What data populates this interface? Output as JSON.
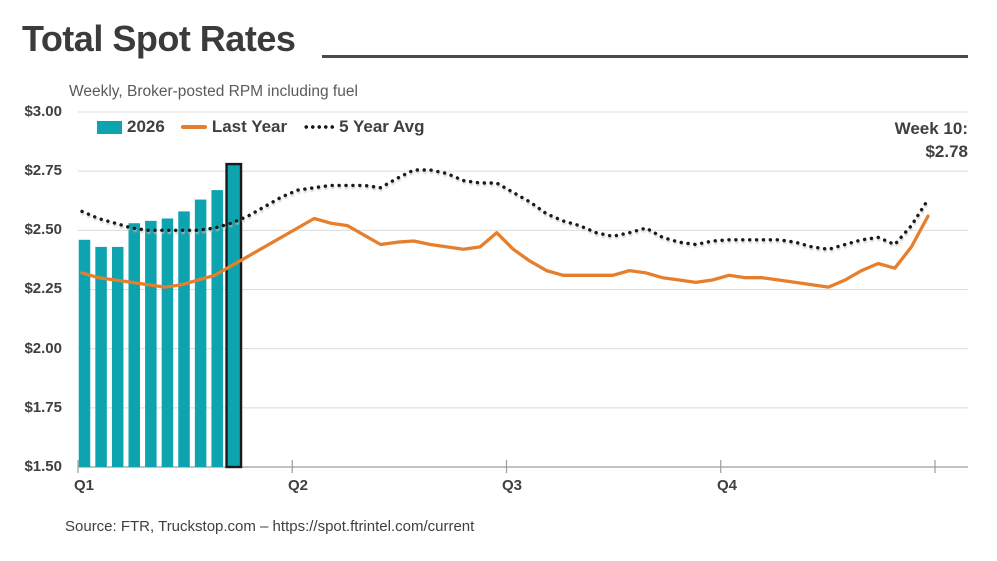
{
  "title": "Total Spot Rates",
  "subtitle": "Weekly, Broker-posted RPM including fuel",
  "source": "Source: FTR, Truckstop.com – https://spot.ftrintel.com/current",
  "annotation": {
    "line1": "Week 10:",
    "line2": "$2.78"
  },
  "legend": {
    "items": [
      {
        "label": "2026",
        "swatch": "bar",
        "color": "#0da3af"
      },
      {
        "label": "Last Year",
        "swatch": "line",
        "color": "#e67f2d"
      },
      {
        "label": "5 Year Avg",
        "swatch": "dotted",
        "color": "#1a1a1a"
      }
    ]
  },
  "chart_data": {
    "type": "combo-bar-line",
    "title": "Total Spot Rates",
    "subtitle": "Weekly, Broker-posted RPM including fuel",
    "x_unit": "week of year (1-52), grouped by quarter",
    "x_tick_labels": [
      "Q1",
      "Q2",
      "Q3",
      "Q4"
    ],
    "y_tick_labels": [
      "$3.00",
      "$2.75",
      "$2.50",
      "$2.25",
      "$2.00",
      "$1.75",
      "$1.50"
    ],
    "ylim": [
      1.5,
      3.0
    ],
    "grid": "horizontal",
    "legend_position": "top-left",
    "highlight": {
      "series": "2026",
      "week": 10,
      "label": "Week 10:",
      "value": "$2.78",
      "outline_color": "#1a1a1a"
    },
    "series": [
      {
        "name": "2026",
        "type": "bar",
        "color": "#0da3af",
        "weeks": [
          1,
          2,
          3,
          4,
          5,
          6,
          7,
          8,
          9,
          10
        ],
        "values": [
          2.46,
          2.43,
          2.43,
          2.53,
          2.54,
          2.55,
          2.58,
          2.63,
          2.67,
          2.78
        ]
      },
      {
        "name": "Last Year",
        "type": "line",
        "color": "#e67f2d",
        "weeks": "1-52",
        "values": [
          2.32,
          2.3,
          2.29,
          2.28,
          2.27,
          2.26,
          2.27,
          2.29,
          2.31,
          2.35,
          2.39,
          2.43,
          2.47,
          2.51,
          2.55,
          2.53,
          2.52,
          2.48,
          2.44,
          2.45,
          2.455,
          2.44,
          2.43,
          2.42,
          2.43,
          2.49,
          2.42,
          2.37,
          2.33,
          2.31,
          2.31,
          2.31,
          2.31,
          2.33,
          2.32,
          2.3,
          2.29,
          2.28,
          2.29,
          2.31,
          2.3,
          2.3,
          2.29,
          2.28,
          2.27,
          2.26,
          2.29,
          2.33,
          2.36,
          2.34,
          2.43,
          2.56
        ]
      },
      {
        "name": "5 Year Avg",
        "type": "dotted-line",
        "color": "#1a1a1a",
        "weeks": "1-52",
        "values": [
          2.58,
          2.55,
          2.53,
          2.51,
          2.5,
          2.5,
          2.5,
          2.5,
          2.51,
          2.53,
          2.56,
          2.6,
          2.64,
          2.67,
          2.68,
          2.69,
          2.69,
          2.69,
          2.68,
          2.72,
          2.755,
          2.755,
          2.74,
          2.71,
          2.7,
          2.7,
          2.66,
          2.62,
          2.57,
          2.54,
          2.52,
          2.49,
          2.475,
          2.49,
          2.51,
          2.47,
          2.45,
          2.44,
          2.455,
          2.46,
          2.46,
          2.46,
          2.46,
          2.45,
          2.43,
          2.42,
          2.44,
          2.46,
          2.47,
          2.44,
          2.52,
          2.63
        ]
      }
    ]
  }
}
